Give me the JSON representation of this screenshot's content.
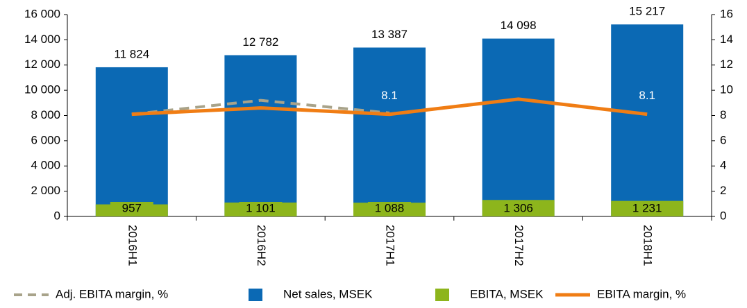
{
  "chart_data": {
    "type": "bar",
    "categories": [
      "2016H1",
      "2016H2",
      "2017H1",
      "2017H2",
      "2018H1"
    ],
    "series": [
      {
        "name": "Adj. EBITA margin, %",
        "color": "#a8a38a",
        "type": "line",
        "dashed": true,
        "axis": "y2",
        "values": [
          8.1,
          9.2,
          8.2,
          null,
          null
        ]
      },
      {
        "name": "Net sales, MSEK",
        "color": "#0b69b4",
        "type": "bar",
        "values": [
          11824,
          12782,
          13387,
          14098,
          15217
        ],
        "value_labels": [
          "11 824",
          "12 782",
          "13 387",
          "14 098",
          "15 217"
        ]
      },
      {
        "name": "EBITA, MSEK",
        "color": "#8db51c",
        "type": "bar",
        "values": [
          957,
          1101,
          1088,
          1306,
          1231
        ],
        "value_labels": [
          "957",
          "1 101",
          "1 088",
          "1 306",
          "1 231"
        ]
      },
      {
        "name": "EBITA margin, %",
        "color": "#f07d14",
        "type": "line",
        "axis": "y2",
        "values": [
          8.1,
          8.6,
          8.1,
          9.3,
          8.1
        ],
        "value_labels": [
          null,
          null,
          "8.1",
          null,
          "8.1"
        ]
      }
    ],
    "ylim": [
      0,
      16000
    ],
    "yticks": [
      0,
      {
        "value": 2000,
        "label": "2 000"
      },
      {
        "value": 4000,
        "label": "4 000"
      },
      {
        "value": 6000,
        "label": "6 000"
      },
      {
        "value": 8000,
        "label": "8 000"
      },
      {
        "value": 10000,
        "label": "10 000"
      },
      {
        "value": 12000,
        "label": "12 000"
      },
      {
        "value": 14000,
        "label": "14 000"
      },
      {
        "value": 16000,
        "label": "16 000"
      }
    ],
    "y2lim": [
      0,
      16
    ],
    "y2ticks": [
      0,
      2,
      4,
      6,
      8,
      10,
      12,
      14,
      16
    ]
  }
}
